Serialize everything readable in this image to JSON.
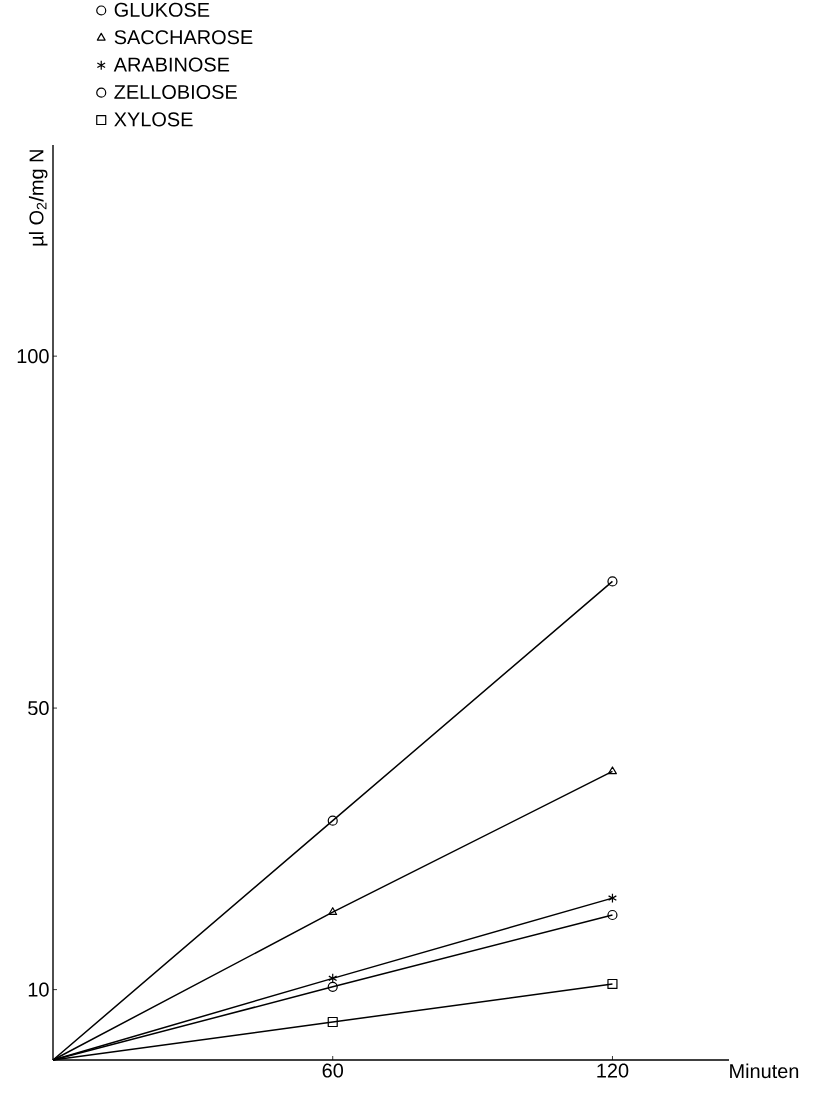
{
  "chart_data": {
    "type": "line",
    "ylabel": "µl O$_{2}$/mg N",
    "xlabel": "Minuten",
    "x": [
      0,
      60,
      120
    ],
    "series": [
      {
        "name": "GLUKOSE",
        "color": "#000000",
        "marker": "circle",
        "values": [
          0,
          34,
          68
        ]
      },
      {
        "name": "SACCHAROSE",
        "color": "#000000",
        "marker": "triangle",
        "values": [
          0,
          21,
          41
        ]
      },
      {
        "name": "ARABINOSE",
        "color": "#000000",
        "marker": "cross",
        "values": [
          0,
          11.6,
          23
        ]
      },
      {
        "name": "ZELLOBIOSE",
        "color": "#000000",
        "marker": "circle",
        "values": [
          0,
          10.4,
          20.6
        ]
      },
      {
        "name": "XYLOSE",
        "color": "#000000",
        "marker": "square",
        "values": [
          0,
          5.4,
          10.8
        ]
      }
    ],
    "xlim": [
      0,
      145
    ],
    "ylim": [
      0,
      130
    ],
    "xticks": [
      60,
      120
    ],
    "yticks": [
      10,
      50,
      100
    ],
    "grid": false,
    "legend": "top left",
    "line_style": "solid"
  }
}
